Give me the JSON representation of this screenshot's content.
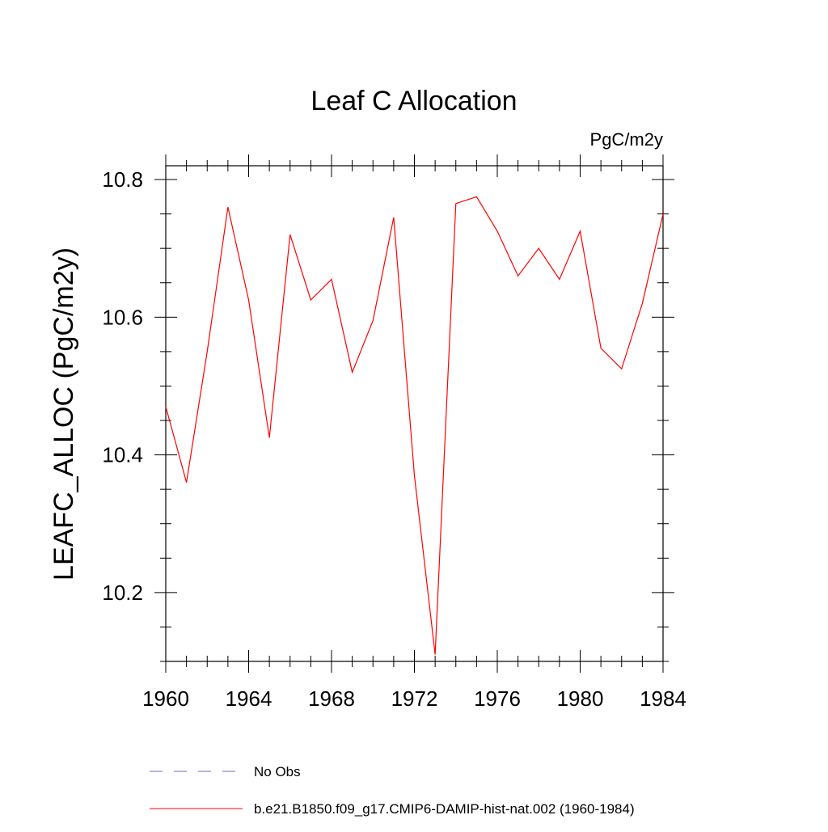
{
  "chart_data": {
    "type": "line",
    "title": "Leaf C Allocation",
    "units_label": "PgC/m2y",
    "ylabel": "LEAFC_ALLOC  (PgC/m2y)",
    "xlabel": "",
    "xlim": [
      1960,
      1984
    ],
    "ylim": [
      10.1,
      10.82
    ],
    "x_ticks": [
      1960,
      1964,
      1968,
      1972,
      1976,
      1980,
      1984
    ],
    "x_tick_labels": [
      "1960",
      "1964",
      "1968",
      "1972",
      "1976",
      "1980",
      "1984"
    ],
    "y_ticks": [
      10.2,
      10.4,
      10.6,
      10.8
    ],
    "y_tick_labels": [
      "10.2",
      "10.4",
      "10.6",
      "10.8"
    ],
    "grid": false,
    "legend_position": "bottom",
    "series": [
      {
        "name": "b.e21.B1850.f09_g17.CMIP6-DAMIP-hist-nat.002 (1960-1984)",
        "color": "#ff0000",
        "style": "solid",
        "x": [
          1960,
          1961,
          1962,
          1963,
          1964,
          1965,
          1966,
          1967,
          1968,
          1969,
          1970,
          1971,
          1972,
          1973,
          1974,
          1975,
          1976,
          1977,
          1978,
          1979,
          1980,
          1981,
          1982,
          1983,
          1984
        ],
        "y": [
          10.47,
          10.36,
          10.55,
          10.76,
          10.625,
          10.425,
          10.72,
          10.625,
          10.655,
          10.52,
          10.595,
          10.745,
          10.37,
          10.11,
          10.765,
          10.775,
          10.725,
          10.66,
          10.7,
          10.655,
          10.725,
          10.555,
          10.525,
          10.62,
          10.75
        ]
      }
    ],
    "legend": [
      {
        "label": "No Obs",
        "color": "#6a6ad0",
        "style": "dashed"
      },
      {
        "label": "b.e21.B1850.f09_g17.CMIP6-DAMIP-hist-nat.002 (1960-1984)",
        "color": "#ff0000",
        "style": "solid"
      }
    ]
  }
}
